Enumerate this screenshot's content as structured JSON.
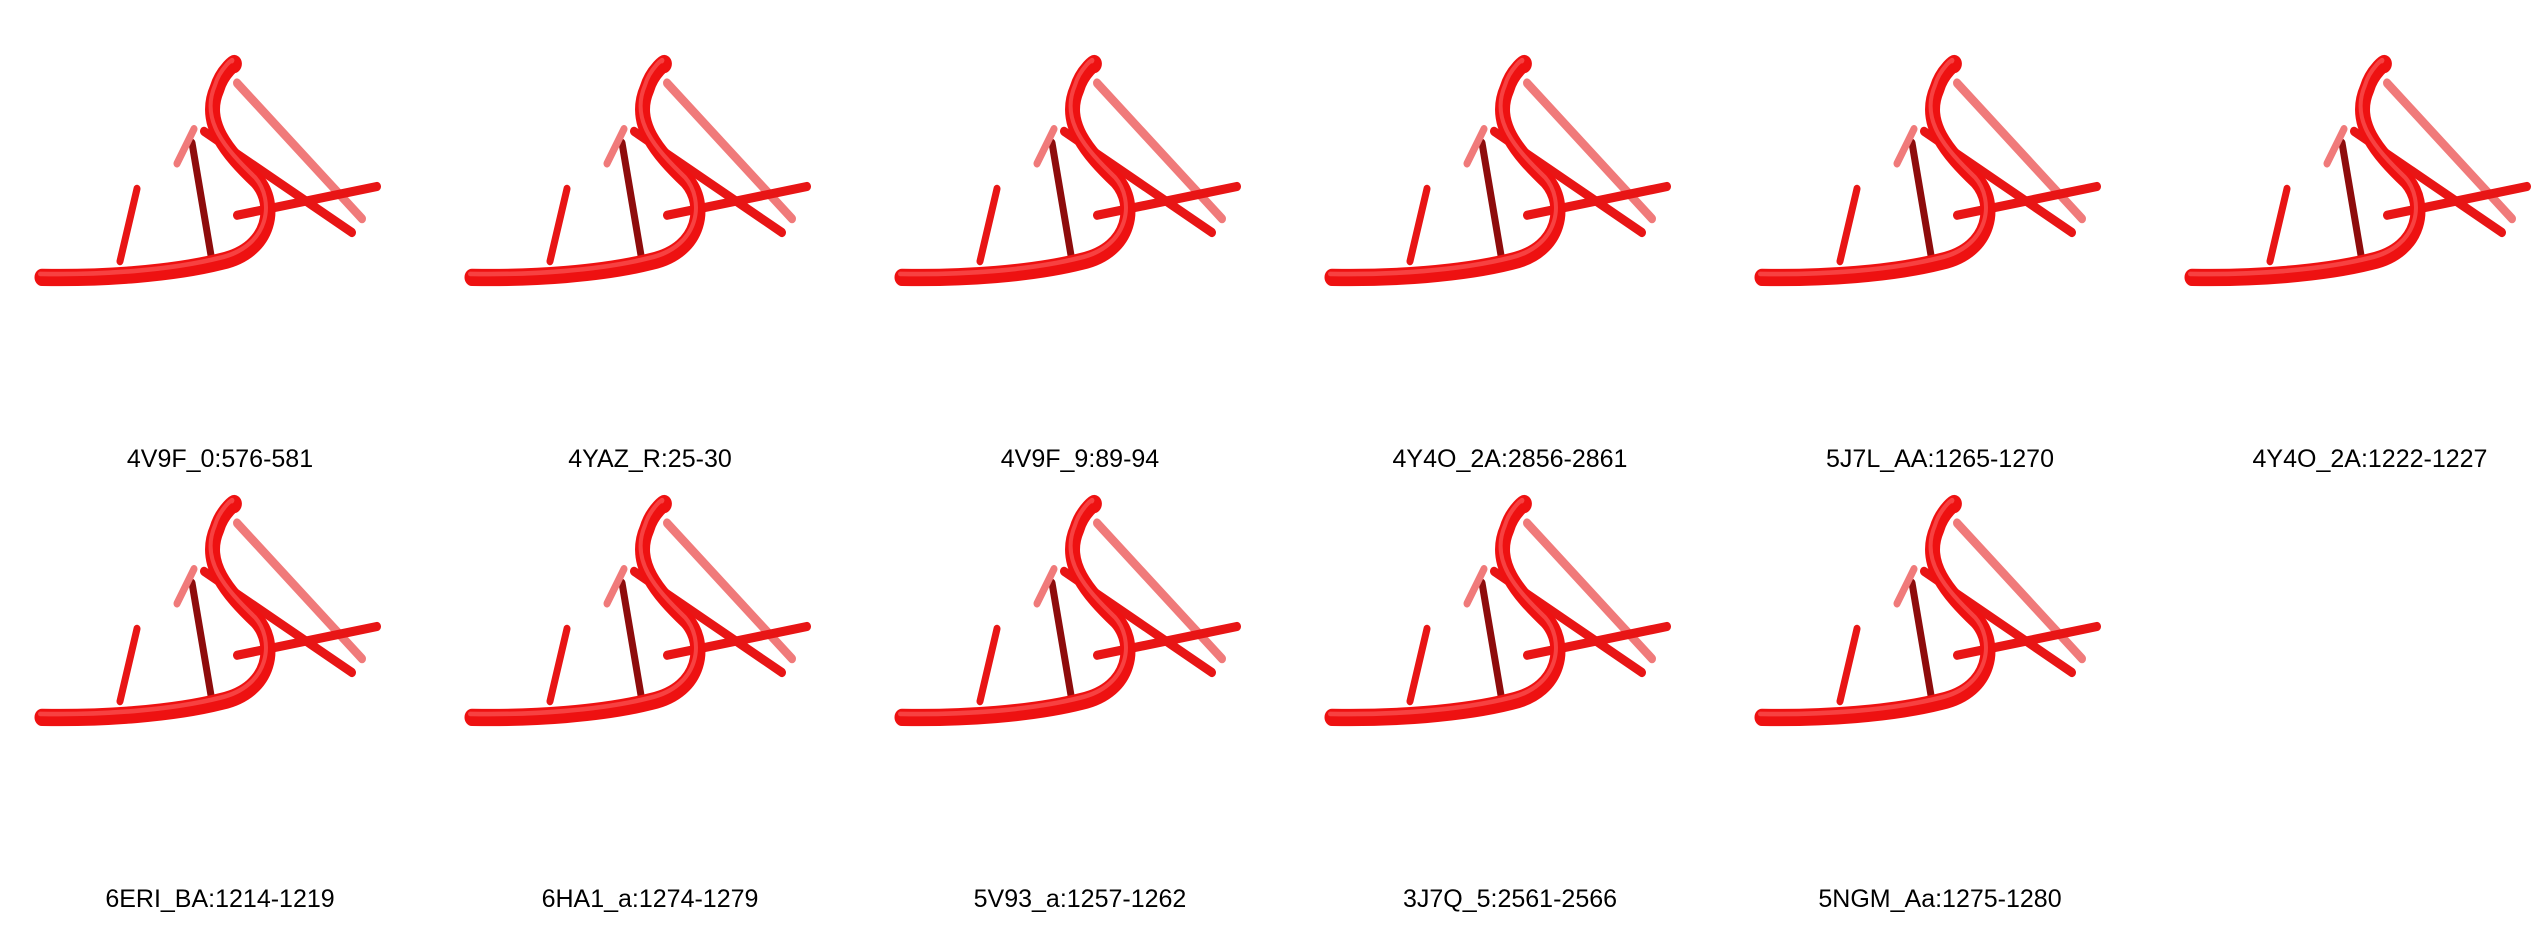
{
  "figure": {
    "colors": {
      "backbone": "#ee1111",
      "backbone_highlight": "#ff6a6a",
      "stick": "#e81515",
      "stick_dark": "#8e0c0c",
      "stick_faded": "#f07a7a"
    },
    "panels": [
      {
        "label": "4V9F_0:576-581"
      },
      {
        "label": "4YAZ_R:25-30"
      },
      {
        "label": "4V9F_9:89-94"
      },
      {
        "label": "4Y4O_2A:2856-2861"
      },
      {
        "label": "5J7L_AA:1265-1270"
      },
      {
        "label": "4Y4O_2A:1222-1227"
      },
      {
        "label": "6ERI_BA:1214-1219"
      },
      {
        "label": "6HA1_a:1274-1279"
      },
      {
        "label": "5V93_a:1257-1262"
      },
      {
        "label": "3J7Q_5:2561-2566"
      },
      {
        "label": "5NGM_Aa:1275-1280"
      }
    ]
  }
}
